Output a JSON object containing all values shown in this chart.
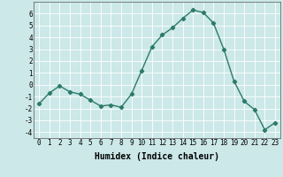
{
  "x": [
    0,
    1,
    2,
    3,
    4,
    5,
    6,
    7,
    8,
    9,
    10,
    11,
    12,
    13,
    14,
    15,
    16,
    17,
    18,
    19,
    20,
    21,
    22,
    23
  ],
  "y": [
    -1.6,
    -0.7,
    -0.1,
    -0.6,
    -0.8,
    -1.3,
    -1.8,
    -1.7,
    -1.9,
    -0.8,
    1.2,
    3.2,
    4.2,
    4.8,
    5.6,
    6.3,
    6.1,
    5.2,
    3.0,
    0.3,
    -1.4,
    -2.1,
    -3.8,
    -3.2
  ],
  "line_color": "#2d7a6a",
  "marker": "D",
  "markersize": 2.2,
  "linewidth": 1.0,
  "xlabel": "Humidex (Indice chaleur)",
  "xlim": [
    -0.5,
    23.5
  ],
  "ylim": [
    -4.5,
    7.0
  ],
  "yticks": [
    -4,
    -3,
    -2,
    -1,
    0,
    1,
    2,
    3,
    4,
    5,
    6
  ],
  "xticks": [
    0,
    1,
    2,
    3,
    4,
    5,
    6,
    7,
    8,
    9,
    10,
    11,
    12,
    13,
    14,
    15,
    16,
    17,
    18,
    19,
    20,
    21,
    22,
    23
  ],
  "background_color": "#cce8e8",
  "grid_color": "#ffffff",
  "tick_fontsize": 5.5,
  "label_fontsize": 7.0
}
